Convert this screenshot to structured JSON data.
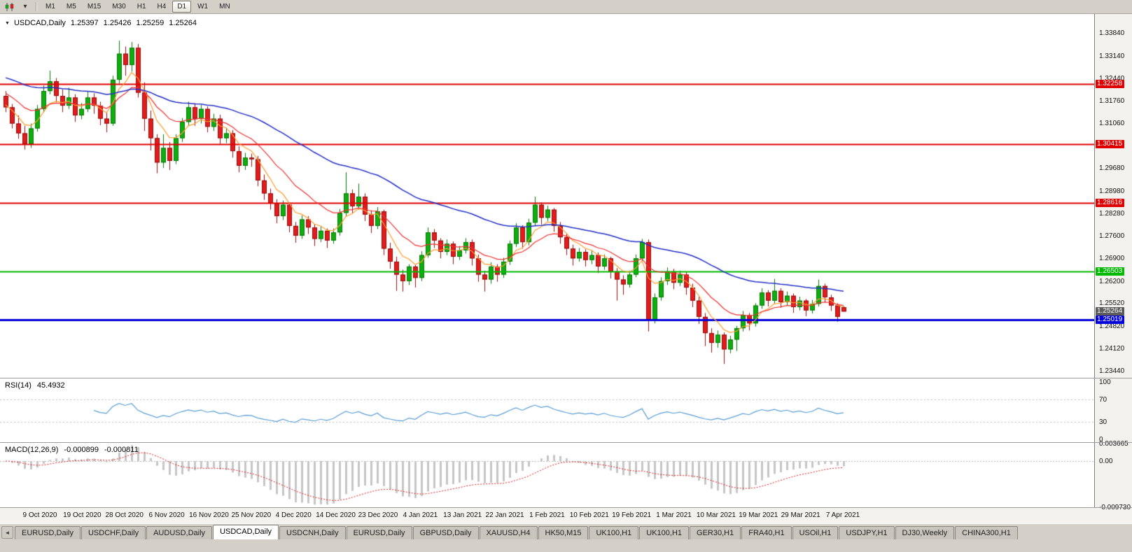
{
  "toolbar": {
    "dropdown_glyph": "▾",
    "active_timeframe": "D1",
    "timeframes": [
      "M1",
      "M5",
      "M15",
      "M30",
      "H1",
      "H4",
      "D1",
      "W1",
      "MN"
    ]
  },
  "chart": {
    "header": {
      "dropdown_glyph": "▼",
      "symbol": "USDCAD,Daily",
      "open": "1.25397",
      "high": "1.25426",
      "low": "1.25259",
      "close": "1.25264"
    },
    "price_axis": {
      "ticks": [
        "1.33840",
        "1.33140",
        "1.32440",
        "1.31760",
        "1.31060",
        "1.30360",
        "1.29680",
        "1.28980",
        "1.28280",
        "1.27600",
        "1.26900",
        "1.26200",
        "1.25520",
        "1.24820",
        "1.24120",
        "1.23440"
      ],
      "current": {
        "label": "1.25264",
        "value": 1.25264,
        "color": "#5c5c5c"
      }
    },
    "levels": [
      {
        "label": "1.32258",
        "value": 1.32258,
        "color": "#e00000",
        "thickness": 2
      },
      {
        "label": "1.30415",
        "value": 1.30415,
        "color": "#e00000",
        "thickness": 2
      },
      {
        "label": "1.28616",
        "value": 1.28616,
        "color": "#e00000",
        "thickness": 2
      },
      {
        "label": "1.26503",
        "value": 1.26503,
        "color": "#00bb00",
        "thickness": 2
      },
      {
        "label": "1.25019",
        "value": 1.25019,
        "color": "#0000dd",
        "thickness": 3
      }
    ],
    "time_axis": [
      "9 Oct 2020",
      "19 Oct 2020",
      "28 Oct 2020",
      "6 Nov 2020",
      "16 Nov 2020",
      "25 Nov 2020",
      "4 Dec 2020",
      "14 Dec 2020",
      "23 Dec 2020",
      "4 Jan 2021",
      "13 Jan 2021",
      "22 Jan 2021",
      "1 Feb 2021",
      "10 Feb 2021",
      "19 Feb 2021",
      "1 Mar 2021",
      "10 Mar 2021",
      "19 Mar 2021",
      "29 Mar 2021",
      "7 Apr 2021"
    ],
    "colors": {
      "background": "#ffffff",
      "bull": "#0fae0f",
      "bull_border": "#077507",
      "bear": "#e31b1b",
      "bear_border": "#8f0f0f"
    }
  },
  "chart_data": {
    "type": "candlestick",
    "symbol": "USDCAD",
    "timeframe": "Daily",
    "x_range": [
      "5 Oct 2020",
      "9 Apr 2021"
    ],
    "y_range": [
      1.2344,
      1.3384
    ],
    "candles": [
      [
        1.319,
        1.3205,
        1.314,
        1.3155
      ],
      [
        1.3155,
        1.3165,
        1.309,
        1.3105
      ],
      [
        1.3105,
        1.313,
        1.3058,
        1.3075
      ],
      [
        1.3075,
        1.3098,
        1.3025,
        1.3042
      ],
      [
        1.3042,
        1.3105,
        1.303,
        1.309
      ],
      [
        1.309,
        1.3162,
        1.308,
        1.315
      ],
      [
        1.315,
        1.3222,
        1.314,
        1.3205
      ],
      [
        1.3205,
        1.3268,
        1.3195,
        1.3235
      ],
      [
        1.3235,
        1.3245,
        1.317,
        1.319
      ],
      [
        1.319,
        1.321,
        1.314,
        1.316
      ],
      [
        1.316,
        1.3215,
        1.315,
        1.3185
      ],
      [
        1.3185,
        1.3195,
        1.311,
        1.313
      ],
      [
        1.313,
        1.3168,
        1.3118,
        1.315
      ],
      [
        1.315,
        1.3205,
        1.314,
        1.3185
      ],
      [
        1.3185,
        1.3198,
        1.3135,
        1.316
      ],
      [
        1.316,
        1.3172,
        1.31,
        1.312
      ],
      [
        1.312,
        1.3138,
        1.3078,
        1.3105
      ],
      [
        1.3105,
        1.3252,
        1.3098,
        1.324
      ],
      [
        1.324,
        1.336,
        1.3228,
        1.332
      ],
      [
        1.332,
        1.3342,
        1.3252,
        1.3285
      ],
      [
        1.3285,
        1.3356,
        1.3265,
        1.3338
      ],
      [
        1.3338,
        1.335,
        1.3185,
        1.32
      ],
      [
        1.32,
        1.3232,
        1.3082,
        1.312
      ],
      [
        1.312,
        1.3145,
        1.3022,
        1.306
      ],
      [
        1.306,
        1.3072,
        1.2952,
        1.2985
      ],
      [
        1.2985,
        1.3072,
        1.2968,
        1.303
      ],
      [
        1.303,
        1.3048,
        1.2962,
        1.299
      ],
      [
        1.299,
        1.3072,
        1.298,
        1.306
      ],
      [
        1.306,
        1.3122,
        1.3048,
        1.311
      ],
      [
        1.311,
        1.3172,
        1.31,
        1.3155
      ],
      [
        1.3155,
        1.3168,
        1.3098,
        1.312
      ],
      [
        1.312,
        1.3162,
        1.3105,
        1.315
      ],
      [
        1.315,
        1.3158,
        1.3078,
        1.3095
      ],
      [
        1.3095,
        1.3135,
        1.3082,
        1.312
      ],
      [
        1.312,
        1.3132,
        1.3042,
        1.306
      ],
      [
        1.306,
        1.3092,
        1.3045,
        1.3075
      ],
      [
        1.3075,
        1.3085,
        1.3,
        1.302
      ],
      [
        1.302,
        1.3035,
        1.2955,
        1.2975
      ],
      [
        1.2975,
        1.3015,
        1.2962,
        1.3
      ],
      [
        1.3,
        1.3012,
        1.2972,
        1.2995
      ],
      [
        1.2995,
        1.3005,
        1.2912,
        1.293
      ],
      [
        1.293,
        1.2948,
        1.287,
        1.289
      ],
      [
        1.289,
        1.2905,
        1.284,
        1.286
      ],
      [
        1.286,
        1.2872,
        1.2798,
        1.282
      ],
      [
        1.282,
        1.2868,
        1.2808,
        1.2855
      ],
      [
        1.2855,
        1.2862,
        1.277,
        1.279
      ],
      [
        1.279,
        1.2802,
        1.2738,
        1.276
      ],
      [
        1.276,
        1.2822,
        1.275,
        1.281
      ],
      [
        1.281,
        1.282,
        1.2765,
        1.2785
      ],
      [
        1.2785,
        1.2795,
        1.2728,
        1.275
      ],
      [
        1.275,
        1.2788,
        1.274,
        1.2775
      ],
      [
        1.2775,
        1.2782,
        1.2722,
        1.2745
      ],
      [
        1.2745,
        1.2782,
        1.2735,
        1.277
      ],
      [
        1.277,
        1.2842,
        1.276,
        1.283
      ],
      [
        1.283,
        1.2955,
        1.282,
        1.289
      ],
      [
        1.289,
        1.2902,
        1.2828,
        1.285
      ],
      [
        1.285,
        1.292,
        1.284,
        1.288
      ],
      [
        1.288,
        1.289,
        1.2805,
        1.2825
      ],
      [
        1.2825,
        1.2838,
        1.2768,
        1.279
      ],
      [
        1.279,
        1.2848,
        1.278,
        1.2835
      ],
      [
        1.2835,
        1.284,
        1.27,
        1.272
      ],
      [
        1.272,
        1.2738,
        1.2658,
        1.268
      ],
      [
        1.268,
        1.2695,
        1.259,
        1.264
      ],
      [
        1.264,
        1.2655,
        1.2588,
        1.262
      ],
      [
        1.262,
        1.2672,
        1.2608,
        1.2665
      ],
      [
        1.2665,
        1.267,
        1.26,
        1.263
      ],
      [
        1.263,
        1.2712,
        1.262,
        1.27
      ],
      [
        1.27,
        1.2785,
        1.2692,
        1.277
      ],
      [
        1.277,
        1.278,
        1.2722,
        1.2745
      ],
      [
        1.2745,
        1.2752,
        1.269,
        1.271
      ],
      [
        1.271,
        1.2748,
        1.27,
        1.2735
      ],
      [
        1.2735,
        1.2742,
        1.2672,
        1.2695
      ],
      [
        1.2695,
        1.2728,
        1.2685,
        1.2715
      ],
      [
        1.2715,
        1.2752,
        1.2705,
        1.274
      ],
      [
        1.274,
        1.2748,
        1.2668,
        1.269
      ],
      [
        1.269,
        1.2702,
        1.2618,
        1.264
      ],
      [
        1.264,
        1.2652,
        1.2588,
        1.2625
      ],
      [
        1.2625,
        1.2678,
        1.2612,
        1.2665
      ],
      [
        1.2665,
        1.2672,
        1.2618,
        1.264
      ],
      [
        1.264,
        1.2692,
        1.263,
        1.268
      ],
      [
        1.268,
        1.2745,
        1.267,
        1.2735
      ],
      [
        1.2735,
        1.2798,
        1.2725,
        1.2785
      ],
      [
        1.2785,
        1.2792,
        1.272,
        1.274
      ],
      [
        1.274,
        1.2812,
        1.273,
        1.28
      ],
      [
        1.28,
        1.288,
        1.279,
        1.2855
      ],
      [
        1.2855,
        1.2862,
        1.2795,
        1.2815
      ],
      [
        1.2815,
        1.2852,
        1.2805,
        1.284
      ],
      [
        1.284,
        1.2845,
        1.2772,
        1.279
      ],
      [
        1.279,
        1.2802,
        1.2735,
        1.2755
      ],
      [
        1.2755,
        1.2768,
        1.27,
        1.272
      ],
      [
        1.272,
        1.2732,
        1.2668,
        1.269
      ],
      [
        1.269,
        1.2722,
        1.268,
        1.271
      ],
      [
        1.271,
        1.2718,
        1.2665,
        1.2685
      ],
      [
        1.2685,
        1.2715,
        1.2672,
        1.27
      ],
      [
        1.27,
        1.2708,
        1.2645,
        1.2665
      ],
      [
        1.2665,
        1.2702,
        1.2655,
        1.269
      ],
      [
        1.269,
        1.2695,
        1.2628,
        1.265
      ],
      [
        1.265,
        1.266,
        1.256,
        1.2625
      ],
      [
        1.2625,
        1.2638,
        1.2578,
        1.261
      ],
      [
        1.261,
        1.2652,
        1.26,
        1.264
      ],
      [
        1.264,
        1.2702,
        1.2632,
        1.269
      ],
      [
        1.269,
        1.275,
        1.2682,
        1.274
      ],
      [
        1.274,
        1.2748,
        1.2465,
        1.25
      ],
      [
        1.25,
        1.2582,
        1.249,
        1.257
      ],
      [
        1.257,
        1.2632,
        1.256,
        1.262
      ],
      [
        1.262,
        1.2662,
        1.2608,
        1.265
      ],
      [
        1.265,
        1.2658,
        1.2595,
        1.2615
      ],
      [
        1.2615,
        1.2652,
        1.2605,
        1.264
      ],
      [
        1.264,
        1.2648,
        1.2578,
        1.26
      ],
      [
        1.26,
        1.2612,
        1.254,
        1.256
      ],
      [
        1.256,
        1.2572,
        1.2488,
        1.251
      ],
      [
        1.251,
        1.2522,
        1.242,
        1.246
      ],
      [
        1.246,
        1.2475,
        1.24,
        1.243
      ],
      [
        1.243,
        1.2468,
        1.2415,
        1.2455
      ],
      [
        1.2455,
        1.2462,
        1.2365,
        1.241
      ],
      [
        1.241,
        1.2452,
        1.2398,
        1.244
      ],
      [
        1.244,
        1.2482,
        1.2405,
        1.2475
      ],
      [
        1.2475,
        1.2528,
        1.2465,
        1.2515
      ],
      [
        1.2515,
        1.2522,
        1.2468,
        1.249
      ],
      [
        1.249,
        1.2552,
        1.248,
        1.2545
      ],
      [
        1.2545,
        1.2598,
        1.2535,
        1.2585
      ],
      [
        1.2585,
        1.2592,
        1.2542,
        1.256
      ],
      [
        1.256,
        1.2627,
        1.255,
        1.259
      ],
      [
        1.259,
        1.2598,
        1.2538,
        1.2555
      ],
      [
        1.2555,
        1.2588,
        1.2545,
        1.2575
      ],
      [
        1.2575,
        1.2582,
        1.2522,
        1.254
      ],
      [
        1.254,
        1.2572,
        1.253,
        1.256
      ],
      [
        1.256,
        1.2565,
        1.2512,
        1.253
      ],
      [
        1.253,
        1.2562,
        1.252,
        1.255
      ],
      [
        1.255,
        1.2625,
        1.2542,
        1.2605
      ],
      [
        1.2605,
        1.2612,
        1.2555,
        1.257
      ],
      [
        1.257,
        1.2578,
        1.2528,
        1.2545
      ],
      [
        1.2545,
        1.2552,
        1.2495,
        1.251
      ],
      [
        1.25397,
        1.25426,
        1.25259,
        1.25264
      ]
    ],
    "moving_averages": [
      {
        "name": "fast",
        "period": 6,
        "seed": 1.3165,
        "color": "#ff9d2e"
      },
      {
        "name": "medium",
        "period": 14,
        "seed": 1.3205,
        "color": "#f23131"
      },
      {
        "name": "slow",
        "period": 45,
        "seed": 1.325,
        "color": "#2330c8"
      }
    ]
  },
  "rsi": {
    "label": "RSI(14)",
    "value": "45.4932",
    "period": 14,
    "line_color": "#5b9ed6",
    "level_line_color": "#c0c0c0",
    "level_lines": [
      70,
      30
    ],
    "ticks": [
      "100",
      "70",
      "30",
      "0"
    ],
    "range": [
      0,
      100
    ]
  },
  "macd": {
    "label": "MACD(12,26,9)",
    "value_main": "-0.000899",
    "value_signal": "-0.000811",
    "fast": 12,
    "slow": 26,
    "signal": 9,
    "histogram_color": "#c6c6c6",
    "signal_color": "#e02020",
    "zero_line_color": "#b8b8b8",
    "ticks": [
      "0.003665",
      "0.00",
      "-0.009730"
    ]
  },
  "tabbar": {
    "scroll_left_glyph": "◄",
    "active": "USDCAD,Daily",
    "active_index": 3,
    "tabs": [
      "EURUSD,Daily",
      "USDCHF,Daily",
      "AUDUSD,Daily",
      "USDCAD,Daily",
      "USDCNH,Daily",
      "EURUSD,Daily",
      "GBPUSD,Daily",
      "XAUUSD,H4",
      "HK50,M15",
      "UK100,H1",
      "UK100,H1",
      "GER30,H1",
      "FRA40,H1",
      "USOil,H1",
      "USDJPY,H1",
      "DJ30,Weekly",
      "CHINA300,H1"
    ]
  }
}
